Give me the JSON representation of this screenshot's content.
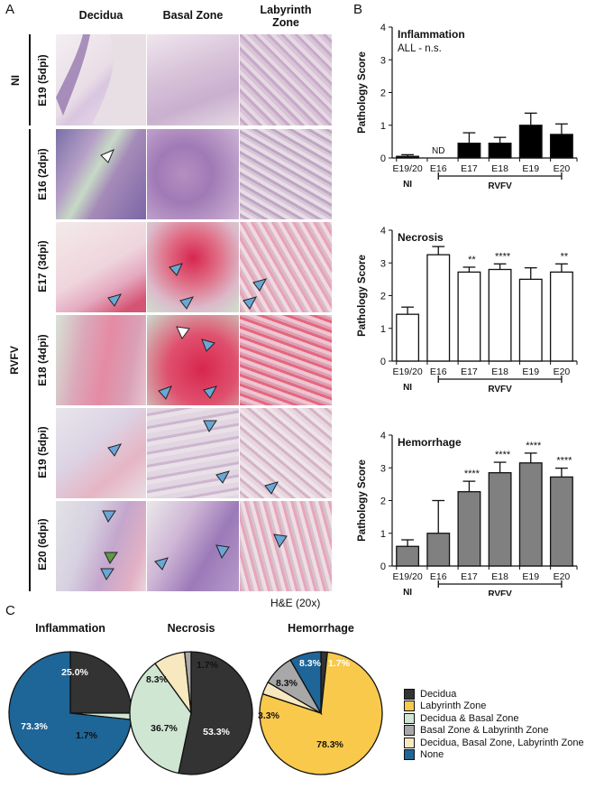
{
  "panel_labels": {
    "a": "A",
    "b": "B",
    "c": "C"
  },
  "histology": {
    "columns": [
      "Decidua",
      "Basal Zone",
      "Labyrinth\nZone"
    ],
    "groups": {
      "ni": "NI",
      "rvfv": "RVFV"
    },
    "rows": [
      {
        "label": "E19 (5dpi)",
        "group": "NI"
      },
      {
        "label": "E16 (2dpi)",
        "group": "RVFV"
      },
      {
        "label": "E17 (3dpi)",
        "group": "RVFV"
      },
      {
        "label": "E18 (4dpi)",
        "group": "RVFV"
      },
      {
        "label": "E19 (5dpi)",
        "group": "RVFV"
      },
      {
        "label": "E20 (6dpi)",
        "group": "RVFV"
      }
    ],
    "stain_note": "H&E (20x)",
    "colors": {
      "he_pink": "#e7a9bf",
      "he_purple": "#9a6bb3",
      "hemorrhage_red": "#d7264f",
      "arrow_blue": "#6aa7d6",
      "arrow_white": "#ffffff",
      "arrow_green": "#5f9a45"
    }
  },
  "chart_data": [
    {
      "type": "bar",
      "title": "Inflammation",
      "subtitle": "ALL - n.s.",
      "ylabel": "Pathology Score",
      "categories": [
        "E19/20",
        "E16",
        "E17",
        "E18",
        "E19",
        "E20"
      ],
      "values": [
        0.05,
        0,
        0.45,
        0.45,
        1.0,
        0.72
      ],
      "errors": [
        0.05,
        0,
        0.32,
        0.18,
        0.37,
        0.32
      ],
      "bar_labels": [
        "",
        "ND",
        "",
        "",
        "",
        ""
      ],
      "significance": [
        "",
        "",
        "",
        "",
        "",
        ""
      ],
      "group_labels": {
        "ni": "NI",
        "rvfv": "RVFV"
      },
      "ylim": [
        0,
        4
      ],
      "yticks": [
        0,
        1,
        2,
        3,
        4
      ],
      "bar_color": "#000000"
    },
    {
      "type": "bar",
      "title": "Necrosis",
      "ylabel": "Pathology Score",
      "categories": [
        "E19/20",
        "E16",
        "E17",
        "E18",
        "E19",
        "E20"
      ],
      "values": [
        1.43,
        3.25,
        2.72,
        2.8,
        2.5,
        2.72
      ],
      "errors": [
        0.22,
        0.25,
        0.15,
        0.17,
        0.35,
        0.25
      ],
      "significance": [
        "",
        "",
        "**",
        "****",
        "",
        "**"
      ],
      "group_labels": {
        "ni": "NI",
        "rvfv": "RVFV"
      },
      "ylim": [
        0,
        4
      ],
      "yticks": [
        0,
        1,
        2,
        3,
        4
      ],
      "bar_color": "#ffffff"
    },
    {
      "type": "bar",
      "title": "Hemorrhage",
      "ylabel": "Pathology Score",
      "categories": [
        "E19/20",
        "E16",
        "E17",
        "E18",
        "E19",
        "E20"
      ],
      "values": [
        0.6,
        1.0,
        2.27,
        2.85,
        3.15,
        2.72
      ],
      "errors": [
        0.2,
        1.0,
        0.32,
        0.32,
        0.3,
        0.27
      ],
      "significance": [
        "",
        "",
        "****",
        "****",
        "****",
        "****"
      ],
      "group_labels": {
        "ni": "NI",
        "rvfv": "RVFV"
      },
      "ylim": [
        0,
        4
      ],
      "yticks": [
        0,
        1,
        2,
        3,
        4
      ],
      "bar_color": "#808080"
    },
    {
      "type": "pie",
      "title": "Inflammation",
      "slices": [
        {
          "label": "Decidua",
          "value": 25.0,
          "text": "25.0%"
        },
        {
          "label": "Decidua & Basal Zone",
          "value": 1.7,
          "text": "1.7%"
        },
        {
          "label": "None",
          "value": 73.3,
          "text": "73.3%"
        }
      ]
    },
    {
      "type": "pie",
      "title": "Necrosis",
      "slices": [
        {
          "label": "Decidua",
          "value": 53.3,
          "text": "53.3%"
        },
        {
          "label": "Decidua & Basal Zone",
          "value": 36.7,
          "text": "36.7%"
        },
        {
          "label": "Decidua, Basal Zone, Labyrinth Zone",
          "value": 8.3,
          "text": "8.3%"
        },
        {
          "label": "Basal Zone & Labyrinth Zone",
          "value": 1.7,
          "text": "1.7%"
        }
      ]
    },
    {
      "type": "pie",
      "title": "Hemorrhage",
      "slices": [
        {
          "label": "Decidua",
          "value": 1.7,
          "text": "1.7%"
        },
        {
          "label": "Labyrinth Zone",
          "value": 78.3,
          "text": "78.3%"
        },
        {
          "label": "Decidua, Basal Zone, Labyrinth Zone",
          "value": 3.3,
          "text": "3.3%"
        },
        {
          "label": "Basal Zone & Labyrinth Zone",
          "value": 8.3,
          "text": "8.3%"
        },
        {
          "label": "None",
          "value": 8.3,
          "text": "8.3%"
        }
      ]
    }
  ],
  "legend": [
    {
      "label": "Decidua",
      "color": "#333333"
    },
    {
      "label": "Labyrinth Zone",
      "color": "#f8c94b"
    },
    {
      "label": "Decidua & Basal Zone",
      "color": "#cfe6d2"
    },
    {
      "label": "Basal Zone & Labyrinth Zone",
      "color": "#a8a8a8"
    },
    {
      "label": "Decidua, Basal Zone, Labyrinth Zone",
      "color": "#f7e8bf"
    },
    {
      "label": "None",
      "color": "#1e6598"
    }
  ]
}
